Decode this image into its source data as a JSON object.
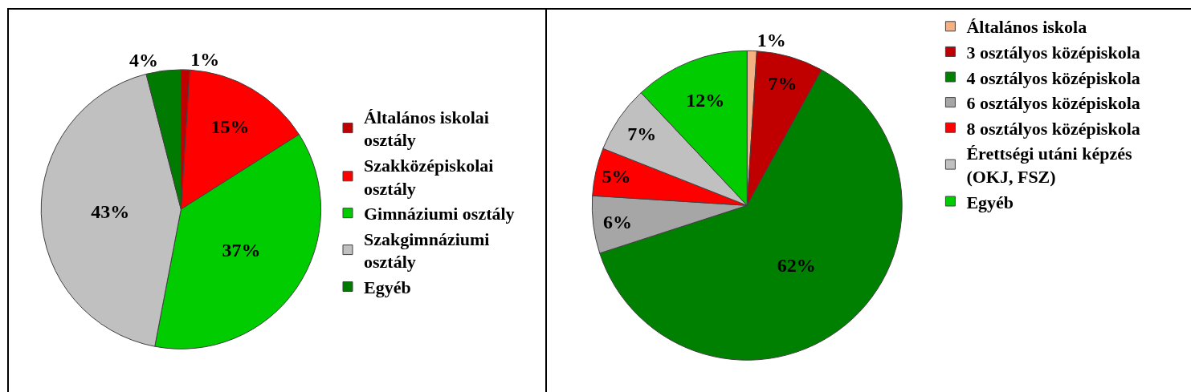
{
  "chart_data": [
    {
      "type": "pie",
      "categories": [
        "Általános iskolai osztály",
        "Szakközépiskolai osztály",
        "Gimnáziumi osztály",
        "Szakgimnáziumi osztály",
        "Egyéb"
      ],
      "values": [
        1,
        15,
        37,
        43,
        4
      ],
      "colors": [
        "#c00000",
        "#ff0000",
        "#00cc00",
        "#c0c0c0",
        "#007a00"
      ],
      "value_labels": [
        "1%",
        "15%",
        "37%",
        "43%",
        "4%"
      ],
      "legend": "right"
    },
    {
      "type": "pie",
      "categories": [
        "Általános iskola",
        "3 osztályos középiskola",
        "4 osztályos középiskola",
        "6 osztályos középiskola",
        "8 osztályos középiskola",
        "Érettségi utáni képzés (OKJ, FSZ)",
        "Egyéb"
      ],
      "values": [
        1,
        7,
        62,
        6,
        5,
        7,
        12
      ],
      "colors": [
        "#f4b183",
        "#c00000",
        "#008000",
        "#a6a6a6",
        "#ff0000",
        "#c0c0c0",
        "#00cc00"
      ],
      "value_labels": [
        "1%",
        "7%",
        "62%",
        "6%",
        "5%",
        "7%",
        "12%"
      ],
      "legend": "top right"
    }
  ]
}
